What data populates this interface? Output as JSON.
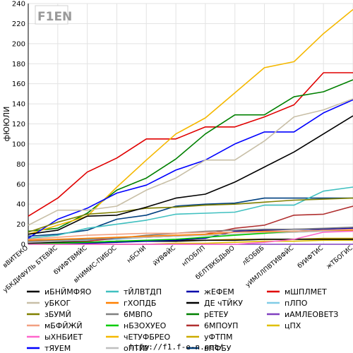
{
  "logo": {
    "text": "F1EN"
  },
  "footer": {
    "url": "http://f1.f-e-n.net/"
  },
  "chart_data": {
    "type": "line",
    "ylabel": "фЮЮЛИ",
    "ylim": [
      0,
      240
    ],
    "yticks": [
      0,
      20,
      40,
      60,
      80,
      100,
      120,
      140,
      160,
      180,
      200,
      220,
      240
    ],
    "grid": true,
    "legend_position": "bottom",
    "categories": [
      "вВИТЕКО",
      "уБКДИФУЛЬ БТЕВЙС",
      "бУИФТВМЙС",
      "вНИМИС-ПИБОС",
      "нБСНИ",
      "йУВФЙС",
      "нПОБЛП",
      "бЕЛТВКБДЬВО",
      "лЕОБВБ",
      "уИМЛЛПВТИВФЙС",
      "бУИФТИС",
      "жТБОГИС"
    ],
    "series": [
      {
        "name": "иБНЙМФЯО",
        "color": "#000000",
        "values": [
          10,
          14,
          28,
          29,
          37,
          46,
          50,
          62,
          77,
          92,
          110,
          128
        ]
      },
      {
        "name": "уБКОГ",
        "color": "#c8bfa7",
        "values": [
          19,
          34,
          34,
          38,
          54,
          66,
          84,
          84,
          103,
          127,
          134,
          145
        ]
      },
      {
        "name": "зБУМЙ",
        "color": "#808000",
        "values": [
          12,
          22,
          30,
          32,
          36,
          37,
          39,
          40,
          42,
          44,
          45,
          46
        ]
      },
      {
        "name": "мБФЙЖЙ",
        "color": "#f2a081",
        "values": [
          5,
          7,
          9,
          10,
          11,
          11,
          12,
          12,
          12,
          13,
          14,
          15
        ]
      },
      {
        "name": "ыХНБИЕТ",
        "color": "#ff66cc",
        "values": [
          0,
          0,
          0,
          0,
          0,
          0,
          0,
          0,
          2,
          5,
          12,
          13
        ]
      },
      {
        "name": "тЯУЕМ",
        "color": "#0000ff",
        "values": [
          6,
          25,
          36,
          51,
          59,
          74,
          84,
          100,
          112,
          112,
          131,
          144
        ]
      },
      {
        "name": "тЙЛВТДП",
        "color": "#40c0c0",
        "values": [
          6,
          9,
          16,
          20,
          24,
          30,
          31,
          32,
          39,
          39,
          53,
          57
        ]
      },
      {
        "name": "гХОПДБ",
        "color": "#ff8000",
        "values": [
          4,
          5,
          6,
          7,
          8,
          9,
          10,
          12,
          13,
          13,
          14,
          14
        ]
      },
      {
        "name": "6МВПО",
        "color": "#808080",
        "values": [
          3,
          4,
          5,
          6,
          9,
          11,
          13,
          14,
          15,
          15,
          16,
          17
        ]
      },
      {
        "name": "нБЗОХУЕО",
        "color": "#00cc00",
        "values": [
          0,
          1,
          2,
          3,
          4,
          5,
          7,
          9,
          11,
          13,
          14,
          14
        ]
      },
      {
        "name": "чЕТУФБРЕО",
        "color": "#f5b800",
        "values": [
          10,
          19,
          28,
          57,
          84,
          110,
          126,
          151,
          176,
          182,
          210,
          234
        ]
      },
      {
        "name": "оПТЙУ",
        "color": "#bfbfbf",
        "values": [
          2,
          3,
          5,
          6,
          7,
          8,
          9,
          10,
          11,
          12,
          13,
          13
        ]
      },
      {
        "name": "жЕФЕМ",
        "color": "#0000aa",
        "values": [
          0,
          1,
          1,
          2,
          3,
          4,
          6,
          13,
          14,
          15,
          15,
          16
        ]
      },
      {
        "name": "ДЕ чТЙКУ",
        "color": "#000000",
        "values": [
          1,
          2,
          2,
          3,
          3,
          3,
          4,
          4,
          5,
          5,
          5,
          5
        ]
      },
      {
        "name": "рЕТЕУ",
        "color": "#008000",
        "values": [
          13,
          16,
          31,
          54,
          66,
          85,
          110,
          129,
          129,
          147,
          152,
          164
        ]
      },
      {
        "name": "6МПОУП",
        "color": "#b03030",
        "values": [
          1,
          2,
          3,
          6,
          7,
          8,
          10,
          16,
          19,
          29,
          30,
          38
        ]
      },
      {
        "name": "уФТПМ",
        "color": "#ccaa00",
        "values": [
          1,
          2,
          2,
          3,
          3,
          4,
          4,
          5,
          5,
          5,
          6,
          6
        ]
      },
      {
        "name": "вПФБУ",
        "color": "#004080",
        "values": [
          8,
          10,
          14,
          25,
          29,
          38,
          40,
          41,
          46,
          46,
          46,
          46
        ]
      },
      {
        "name": "мШПЛМЕТ",
        "color": "#e00000",
        "values": [
          28,
          46,
          72,
          86,
          105,
          105,
          117,
          117,
          127,
          139,
          171,
          171
        ]
      },
      {
        "name": "пЛПО",
        "color": "#80cce6",
        "values": [
          2,
          3,
          4,
          5,
          7,
          8,
          9,
          10,
          11,
          12,
          13,
          14
        ]
      },
      {
        "name": "иАМЛЕОВЕТЗ",
        "color": "#8040c0",
        "values": [
          0,
          0,
          0,
          0,
          0,
          0,
          0,
          0,
          0,
          0,
          0,
          0
        ]
      },
      {
        "name": "цПХ",
        "color": "#e0c000",
        "values": [
          0,
          0,
          0,
          0,
          0,
          1,
          1,
          2,
          3,
          3,
          4,
          4
        ]
      }
    ]
  }
}
